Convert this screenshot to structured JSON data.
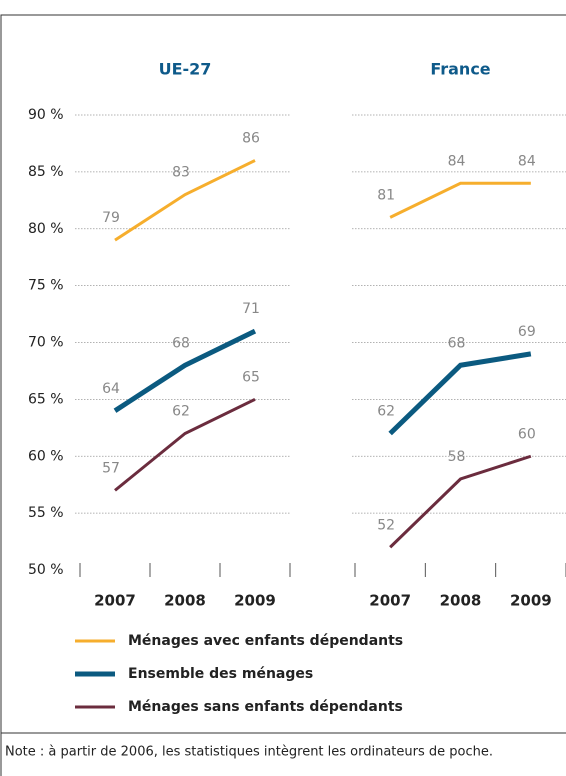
{
  "chart_data": {
    "type": "line",
    "panels": [
      "UE-27",
      "France"
    ],
    "categories": [
      "2007",
      "2008",
      "2009"
    ],
    "ylim": [
      50,
      90
    ],
    "yticks": [
      {
        "value": 50,
        "label": "50 %"
      },
      {
        "value": 55,
        "label": "55 %"
      },
      {
        "value": 60,
        "label": "60 %"
      },
      {
        "value": 65,
        "label": "65 %"
      },
      {
        "value": 70,
        "label": "70 %"
      },
      {
        "value": 75,
        "label": "75 %"
      },
      {
        "value": 80,
        "label": "80 %"
      },
      {
        "value": 85,
        "label": "85 %"
      },
      {
        "value": 90,
        "label": "90 %"
      }
    ],
    "grid": true,
    "legend": "bottom",
    "series": [
      {
        "name": "Ménages avec enfants dépendants",
        "color": "#f6ae2d",
        "values": [
          [
            79,
            83,
            86
          ],
          [
            81,
            84,
            84
          ]
        ]
      },
      {
        "name": "Ensemble des ménages",
        "color": "#0b5a80",
        "values": [
          [
            64,
            68,
            71
          ],
          [
            62,
            68,
            69
          ]
        ]
      },
      {
        "name": "Ménages sans enfants dépendants",
        "color": "#6b2c3e",
        "values": [
          [
            57,
            62,
            65
          ],
          [
            52,
            58,
            60
          ]
        ]
      }
    ],
    "note": "Note : à partir de 2006, les statistiques intègrent les ordinateurs de poche."
  }
}
